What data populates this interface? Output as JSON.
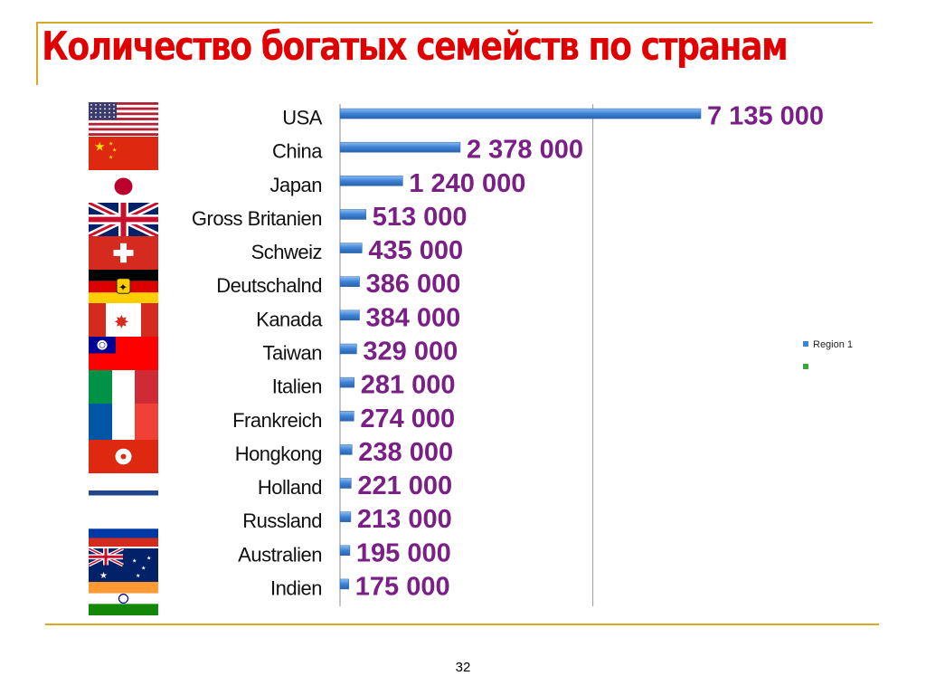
{
  "slide": {
    "title": "Количество богатых семейств по странам",
    "page_number": "32"
  },
  "flags": [
    {
      "country": "USA",
      "icon": "usa-flag-icon"
    },
    {
      "country": "China",
      "icon": "china-flag-icon"
    },
    {
      "country": "Japan",
      "icon": "japan-flag-icon"
    },
    {
      "country": "Gross Britanien",
      "icon": "uk-flag-icon"
    },
    {
      "country": "Schweiz",
      "icon": "switzerland-flag-icon"
    },
    {
      "country": "Deutschalnd",
      "icon": "germany-flag-icon"
    },
    {
      "country": "Kanada",
      "icon": "canada-flag-icon"
    },
    {
      "country": "Taiwan",
      "icon": "taiwan-flag-icon"
    },
    {
      "country": "Italien",
      "icon": "italy-flag-icon"
    },
    {
      "country": "Frankreich",
      "icon": "france-flag-icon"
    },
    {
      "country": "Hongkong",
      "icon": "hongkong-flag-icon"
    },
    {
      "country": "Holland",
      "icon": "netherlands-flag-icon"
    },
    {
      "country": "Russland",
      "icon": "russia-flag-icon"
    },
    {
      "country": "Australien",
      "icon": "australia-flag-icon"
    },
    {
      "country": "Indien",
      "icon": "india-flag-icon"
    }
  ],
  "chart_data": {
    "type": "bar",
    "orientation": "horizontal",
    "categories": [
      "USA",
      "China",
      "Japan",
      "Gross Britanien",
      "Schweiz",
      "Deutschalnd",
      "Kanada",
      "Taiwan",
      "Italien",
      "Frankreich",
      "Hongkong",
      "Holland",
      "Russland",
      "Australien",
      "Indien"
    ],
    "series": [
      {
        "name": "Region 1",
        "values": [
          7135000,
          2378000,
          1240000,
          513000,
          435000,
          386000,
          384000,
          329000,
          281000,
          274000,
          238000,
          221000,
          213000,
          195000,
          175000
        ],
        "labels": [
          "7 135 000",
          "2 378 000",
          "1 240 000",
          "513 000",
          "435 000",
          "386 000",
          "384 000",
          "329 000",
          "281 000",
          "274 000",
          "238 000",
          "221 000",
          "213 000",
          "195 000",
          "175 000"
        ]
      }
    ],
    "legend_entries": [
      "Region 1",
      ""
    ],
    "legend_position": "right",
    "xlim": [
      0,
      8000000
    ],
    "grid": "single vertical gridline",
    "bar_color": "#3d82d6",
    "label_color": "#7a1f86",
    "legend_colors": [
      "#3d82d6",
      "#3aa63a"
    ]
  }
}
